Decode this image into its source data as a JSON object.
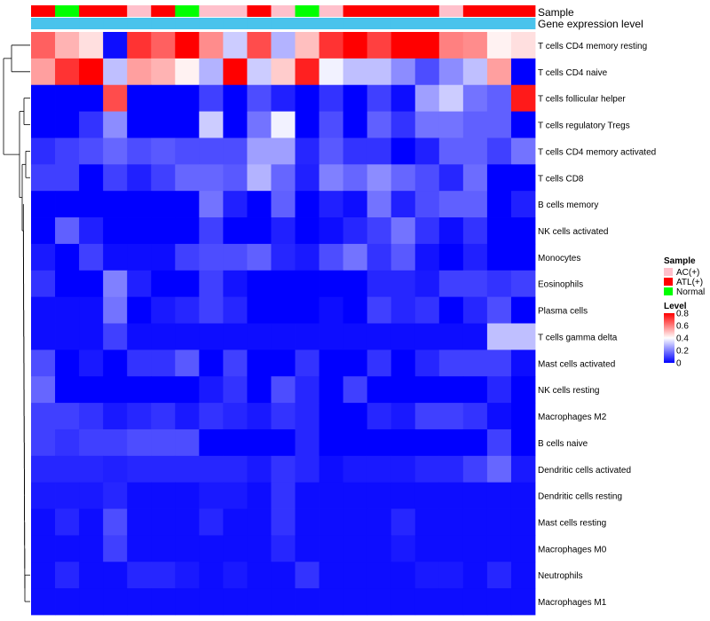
{
  "chart_data": {
    "type": "heatmap",
    "title": "",
    "annotation_labels": {
      "sample": "Sample",
      "gene_expression": "Gene expression level"
    },
    "sample_groups": [
      "ATL(+)",
      "Normal",
      "ATL(+)",
      "ATL(+)",
      "AC(+)",
      "ATL(+)",
      "Normal",
      "AC(+)",
      "AC(+)",
      "ATL(+)",
      "AC(+)",
      "Normal",
      "AC(+)",
      "ATL(+)",
      "ATL(+)",
      "ATL(+)",
      "ATL(+)",
      "AC(+)",
      "ATL(+)",
      "ATL(+)",
      "ATL(+)"
    ],
    "rows": [
      "T cells CD4 memory resting",
      "T cells CD4 naive",
      "T cells follicular helper",
      "T cells regulatory  Tregs",
      "T cells CD4 memory activated",
      "T cells CD8",
      "B cells memory",
      "NK cells activated",
      "Monocytes",
      "Eosinophils",
      "Plasma cells",
      "T cells gamma delta",
      "Mast cells activated",
      "NK cells resting",
      "Macrophages M2",
      "B cells naive",
      "Dendritic cells activated",
      "Dendritic cells resting",
      "Mast cells resting",
      "Macrophages M0",
      "Neutrophils",
      "Macrophages M1"
    ],
    "values": [
      [
        0.65,
        0.52,
        0.45,
        0.02,
        0.72,
        0.65,
        0.8,
        0.58,
        0.32,
        0.68,
        0.28,
        0.5,
        0.72,
        0.8,
        0.7,
        0.8,
        0.8,
        0.6,
        0.58,
        0.42,
        0.45
      ],
      [
        0.55,
        0.72,
        0.8,
        0.3,
        0.55,
        0.52,
        0.42,
        0.28,
        0.8,
        0.32,
        0.48,
        0.75,
        0.38,
        0.3,
        0.3,
        0.22,
        0.12,
        0.22,
        0.3,
        0.55,
        0.0
      ],
      [
        0.0,
        0.0,
        0.0,
        0.68,
        0.0,
        0.0,
        0.0,
        0.1,
        0.0,
        0.12,
        0.05,
        0.0,
        0.08,
        0.0,
        0.1,
        0.02,
        0.25,
        0.32,
        0.18,
        0.15,
        0.76
      ],
      [
        0.0,
        0.0,
        0.08,
        0.22,
        0.0,
        0.0,
        0.0,
        0.32,
        0.0,
        0.18,
        0.38,
        0.0,
        0.12,
        0.0,
        0.15,
        0.08,
        0.18,
        0.18,
        0.15,
        0.15,
        0.0
      ],
      [
        0.07,
        0.1,
        0.12,
        0.16,
        0.12,
        0.14,
        0.12,
        0.12,
        0.12,
        0.25,
        0.25,
        0.06,
        0.14,
        0.08,
        0.08,
        0.0,
        0.05,
        0.15,
        0.15,
        0.1,
        0.18
      ],
      [
        0.1,
        0.1,
        0.0,
        0.1,
        0.05,
        0.1,
        0.16,
        0.16,
        0.14,
        0.28,
        0.16,
        0.05,
        0.2,
        0.16,
        0.22,
        0.16,
        0.12,
        0.06,
        0.17,
        0.0,
        0.0
      ],
      [
        0.0,
        0.0,
        0.0,
        0.0,
        0.0,
        0.0,
        0.0,
        0.18,
        0.05,
        0.0,
        0.15,
        0.0,
        0.05,
        0.02,
        0.18,
        0.05,
        0.12,
        0.15,
        0.15,
        0.0,
        0.05
      ],
      [
        0.0,
        0.15,
        0.05,
        0.0,
        0.0,
        0.0,
        0.0,
        0.1,
        0.0,
        0.0,
        0.05,
        0.0,
        0.02,
        0.06,
        0.1,
        0.18,
        0.08,
        0.02,
        0.08,
        0.0,
        0.0
      ],
      [
        0.04,
        0.0,
        0.1,
        0.02,
        0.02,
        0.02,
        0.1,
        0.12,
        0.12,
        0.15,
        0.06,
        0.04,
        0.12,
        0.18,
        0.08,
        0.14,
        0.03,
        0.0,
        0.05,
        0.0,
        0.0
      ],
      [
        0.08,
        0.0,
        0.0,
        0.2,
        0.05,
        0.0,
        0.0,
        0.1,
        0.03,
        0.0,
        0.0,
        0.0,
        0.0,
        0.0,
        0.06,
        0.06,
        0.04,
        0.1,
        0.1,
        0.08,
        0.1
      ],
      [
        0.02,
        0.02,
        0.02,
        0.18,
        0.0,
        0.04,
        0.06,
        0.1,
        0.06,
        0.0,
        0.0,
        0.0,
        0.02,
        0.0,
        0.1,
        0.06,
        0.08,
        0.0,
        0.06,
        0.12,
        0.0
      ],
      [
        0.02,
        0.02,
        0.02,
        0.1,
        0.02,
        0.02,
        0.02,
        0.02,
        0.02,
        0.02,
        0.02,
        0.02,
        0.02,
        0.02,
        0.02,
        0.02,
        0.02,
        0.02,
        0.02,
        0.3,
        0.3
      ],
      [
        0.12,
        0.0,
        0.04,
        0.0,
        0.08,
        0.08,
        0.14,
        0.0,
        0.1,
        0.0,
        0.0,
        0.08,
        0.0,
        0.0,
        0.08,
        0.0,
        0.06,
        0.1,
        0.1,
        0.1,
        0.02
      ],
      [
        0.16,
        0.0,
        0.0,
        0.0,
        0.0,
        0.0,
        0.0,
        0.04,
        0.08,
        0.0,
        0.12,
        0.06,
        0.0,
        0.1,
        0.0,
        0.0,
        0.0,
        0.0,
        0.0,
        0.06,
        0.0
      ],
      [
        0.1,
        0.1,
        0.08,
        0.04,
        0.06,
        0.08,
        0.04,
        0.08,
        0.06,
        0.04,
        0.08,
        0.06,
        0.0,
        0.0,
        0.06,
        0.04,
        0.1,
        0.1,
        0.08,
        0.02,
        0.0
      ],
      [
        0.1,
        0.08,
        0.1,
        0.1,
        0.12,
        0.12,
        0.12,
        0.0,
        0.0,
        0.0,
        0.0,
        0.06,
        0.0,
        0.0,
        0.0,
        0.0,
        0.0,
        0.0,
        0.0,
        0.1,
        0.0
      ],
      [
        0.06,
        0.06,
        0.06,
        0.05,
        0.06,
        0.06,
        0.06,
        0.06,
        0.06,
        0.04,
        0.08,
        0.06,
        0.02,
        0.04,
        0.04,
        0.04,
        0.06,
        0.06,
        0.1,
        0.16,
        0.04
      ],
      [
        0.04,
        0.04,
        0.04,
        0.06,
        0.02,
        0.02,
        0.02,
        0.04,
        0.04,
        0.02,
        0.08,
        0.02,
        0.02,
        0.02,
        0.02,
        0.02,
        0.02,
        0.02,
        0.02,
        0.02,
        0.02
      ],
      [
        0.02,
        0.06,
        0.02,
        0.12,
        0.02,
        0.02,
        0.02,
        0.06,
        0.02,
        0.02,
        0.08,
        0.02,
        0.02,
        0.02,
        0.02,
        0.06,
        0.02,
        0.02,
        0.02,
        0.02,
        0.02
      ],
      [
        0.02,
        0.02,
        0.02,
        0.1,
        0.02,
        0.02,
        0.02,
        0.02,
        0.02,
        0.02,
        0.06,
        0.02,
        0.02,
        0.02,
        0.02,
        0.04,
        0.02,
        0.02,
        0.02,
        0.02,
        0.02
      ],
      [
        0.02,
        0.06,
        0.02,
        0.02,
        0.06,
        0.06,
        0.04,
        0.02,
        0.04,
        0.02,
        0.02,
        0.08,
        0.02,
        0.02,
        0.02,
        0.02,
        0.04,
        0.04,
        0.02,
        0.06,
        0.02
      ],
      [
        0.02,
        0.02,
        0.02,
        0.02,
        0.02,
        0.02,
        0.02,
        0.02,
        0.02,
        0.02,
        0.02,
        0.02,
        0.02,
        0.02,
        0.02,
        0.02,
        0.02,
        0.02,
        0.02,
        0.02,
        0.02
      ]
    ],
    "gene_expression_color": "#49c3ec",
    "dendrogram": {
      "description": "row clustering tree",
      "merges": [
        [
          0,
          1
        ],
        [
          2,
          3
        ],
        [
          4,
          5
        ]
      ]
    },
    "legend": {
      "sample": {
        "title": "Sample",
        "items": [
          {
            "label": "AC(+)",
            "color": "#ffc0cb"
          },
          {
            "label": "ATL(+)",
            "color": "#ff0000"
          },
          {
            "label": "Normal",
            "color": "#00ff00"
          }
        ]
      },
      "level": {
        "title": "Level",
        "ticks": [
          "0.8",
          "0.6",
          "0.4",
          "0.2",
          "0"
        ],
        "range": [
          0,
          0.8
        ],
        "colors": {
          "low": "#0000ff",
          "mid": "#ffffff",
          "high": "#ff0000"
        },
        "midpoint": 0.4
      }
    }
  }
}
